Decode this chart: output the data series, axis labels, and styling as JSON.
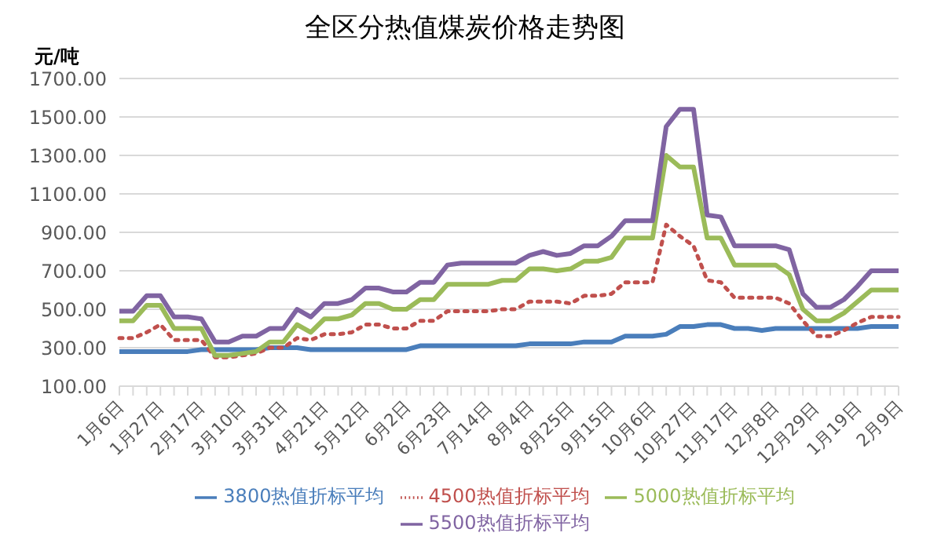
{
  "chart_data": {
    "type": "line",
    "title": "全区分热值煤炭价格走势图",
    "ylabel": "元/吨",
    "categories": [
      "1月6日",
      null,
      null,
      "1月27日",
      null,
      null,
      "2月17日",
      null,
      null,
      "3月10日",
      null,
      null,
      "3月31日",
      null,
      null,
      "4月21日",
      null,
      null,
      "5月12日",
      null,
      null,
      "6月2日",
      null,
      null,
      "6月23日",
      null,
      null,
      "7月14日",
      null,
      null,
      "8月4日",
      null,
      null,
      "8月25日",
      null,
      null,
      "9月15日",
      null,
      null,
      "10月6日",
      null,
      null,
      "10月27日",
      null,
      null,
      "11月17日",
      null,
      null,
      "12月8日",
      null,
      null,
      "12月29日",
      null,
      null,
      "1月19日",
      null,
      null,
      "2月9日"
    ],
    "series": [
      {
        "name": "3800热值折标平均",
        "color": "#4a7ebb",
        "line_style": "solid",
        "values": [
          280,
          280,
          280,
          280,
          280,
          280,
          290,
          290,
          290,
          290,
          290,
          300,
          300,
          300,
          290,
          290,
          290,
          290,
          290,
          290,
          290,
          290,
          310,
          310,
          310,
          310,
          310,
          310,
          310,
          310,
          320,
          320,
          320,
          320,
          330,
          330,
          330,
          360,
          360,
          360,
          370,
          410,
          410,
          420,
          420,
          400,
          400,
          390,
          400,
          400,
          400,
          400,
          400,
          400,
          400,
          410,
          410,
          410
        ]
      },
      {
        "name": "4500热值折标平均",
        "color": "#c0504d",
        "line_style": "dotted",
        "values": [
          350,
          350,
          380,
          420,
          340,
          340,
          340,
          250,
          250,
          260,
          270,
          300,
          300,
          350,
          340,
          370,
          370,
          380,
          420,
          420,
          400,
          400,
          440,
          440,
          490,
          490,
          490,
          490,
          500,
          500,
          540,
          540,
          540,
          530,
          570,
          570,
          580,
          640,
          640,
          640,
          940,
          880,
          830,
          650,
          640,
          560,
          560,
          560,
          560,
          530,
          440,
          360,
          360,
          390,
          430,
          460,
          460,
          460
        ]
      },
      {
        "name": "5000热值折标平均",
        "color": "#9bbb59",
        "line_style": "solid",
        "values": [
          440,
          440,
          520,
          520,
          400,
          400,
          400,
          260,
          260,
          270,
          280,
          330,
          330,
          420,
          380,
          450,
          450,
          470,
          530,
          530,
          500,
          500,
          550,
          550,
          630,
          630,
          630,
          630,
          650,
          650,
          710,
          710,
          700,
          710,
          750,
          750,
          770,
          870,
          870,
          870,
          1300,
          1240,
          1240,
          870,
          870,
          730,
          730,
          730,
          730,
          680,
          500,
          440,
          440,
          480,
          540,
          600,
          600,
          600
        ]
      },
      {
        "name": "5500热值折标平均",
        "color": "#8064a2",
        "line_style": "solid",
        "values": [
          490,
          490,
          570,
          570,
          460,
          460,
          450,
          330,
          330,
          360,
          360,
          400,
          400,
          500,
          460,
          530,
          530,
          550,
          610,
          610,
          590,
          590,
          640,
          640,
          730,
          740,
          740,
          740,
          740,
          740,
          780,
          800,
          780,
          790,
          830,
          830,
          880,
          960,
          960,
          960,
          1450,
          1540,
          1540,
          990,
          980,
          830,
          830,
          830,
          830,
          810,
          580,
          510,
          510,
          550,
          620,
          700,
          700,
          700
        ]
      }
    ],
    "ylim": [
      100,
      1700
    ],
    "yticks": [
      {
        "value": 100,
        "label": "100.00"
      },
      {
        "value": 300,
        "label": "300.00"
      },
      {
        "value": 500,
        "label": "500.00"
      },
      {
        "value": 700,
        "label": "700.00"
      },
      {
        "value": 900,
        "label": "900.00"
      },
      {
        "value": 1100,
        "label": "1100.00"
      },
      {
        "value": 1300,
        "label": "1300.00"
      },
      {
        "value": 1500,
        "label": "1500.00"
      },
      {
        "value": 1700,
        "label": "1700.00"
      }
    ],
    "grid": "y",
    "legend": "bottom",
    "marker": "none"
  }
}
